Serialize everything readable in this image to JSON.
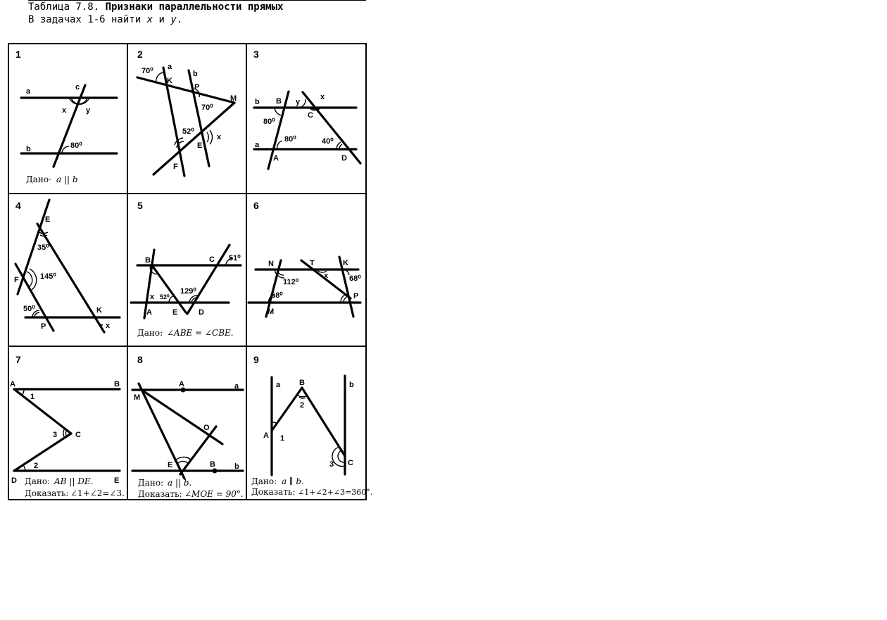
{
  "header": {
    "table_label": "Таблица 7.8.",
    "title": "Признаки параллельности прямых",
    "task_prefix": "В задачах 1-6 найти",
    "var_x": "x",
    "conj": "и",
    "var_y": "y",
    "task_suffix": "."
  },
  "problems": [
    {
      "number": "1",
      "labels": {
        "a": "a",
        "b": "b",
        "c": "c",
        "x": "x",
        "y": "y",
        "angle": "80⁰"
      },
      "given_label": "Дано·",
      "given_expr": "a || b"
    },
    {
      "number": "2",
      "labels": {
        "a": "a",
        "b": "b",
        "K": "K",
        "P": "P",
        "M": "M",
        "E": "E",
        "F": "F",
        "x": "x",
        "angle1": "70⁰",
        "angle2": "70⁰",
        "angle3": "52⁰"
      }
    },
    {
      "number": "3",
      "labels": {
        "a": "a",
        "b": "b",
        "B": "B",
        "C": "C",
        "A": "A",
        "D": "D",
        "x": "x",
        "y": "y",
        "angle1": "80⁰",
        "angle2": "80⁰",
        "angle3": "40⁰"
      }
    },
    {
      "number": "4",
      "labels": {
        "E": "E",
        "F": "F",
        "P": "P",
        "K": "K",
        "x": "x",
        "angle1": "35⁰",
        "angle2": "145⁰",
        "angle3": "50⁰"
      }
    },
    {
      "number": "5",
      "labels": {
        "B": "B",
        "C": "C",
        "A": "A",
        "E": "E",
        "D": "D",
        "x": "x",
        "angle1": "51⁰",
        "angle2": "52⁰",
        "angle3": "129⁰"
      },
      "given_label": "Дано:",
      "given_expr": "∠ABE = ∠CBE."
    },
    {
      "number": "6",
      "labels": {
        "N": "N",
        "T": "T",
        "K": "K",
        "M": "M",
        "P": "P",
        "x": "x",
        "angle1": "112⁰",
        "angle2": "68⁰",
        "angle3": "68⁰"
      }
    },
    {
      "number": "7",
      "labels": {
        "A": "A",
        "B": "B",
        "C": "C",
        "D": "D",
        "E": "E",
        "n1": "1",
        "n2": "2",
        "n3": "3"
      },
      "given_label": "Дано:",
      "given_expr": "AB || DE.",
      "prove_label": "Доказать:",
      "prove_expr": "∠1+∠2=∠3."
    },
    {
      "number": "8",
      "labels": {
        "M": "M",
        "A": "A",
        "a": "a",
        "O": "O",
        "E": "E",
        "B": "B",
        "b": "b"
      },
      "given_label": "Дано:",
      "given_expr": "a || b.",
      "prove_label": "Доказать:",
      "prove_expr": "∠MOE = 90°."
    },
    {
      "number": "9",
      "labels": {
        "a": "a",
        "b": "b",
        "A": "A",
        "B": "B",
        "C": "C",
        "n1": "1",
        "n2": "2",
        "n3": "3"
      },
      "given_label": "Дано:",
      "given_expr": "a ∥ b.",
      "prove_label": "Доказать:",
      "prove_expr": "∠1+∠2+∠3=360°."
    }
  ]
}
